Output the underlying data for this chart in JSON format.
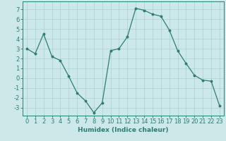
{
  "x": [
    0,
    1,
    2,
    3,
    4,
    5,
    6,
    7,
    8,
    9,
    10,
    11,
    12,
    13,
    14,
    15,
    16,
    17,
    18,
    19,
    20,
    21,
    22,
    23
  ],
  "y": [
    3.0,
    2.5,
    4.5,
    2.2,
    1.8,
    0.2,
    -1.5,
    -2.3,
    -3.5,
    -2.5,
    2.8,
    3.0,
    4.2,
    7.1,
    6.9,
    6.5,
    6.3,
    4.9,
    2.8,
    1.5,
    0.3,
    -0.2,
    -0.3,
    -2.8
  ],
  "line_color": "#2e7d6e",
  "marker": "o",
  "marker_size": 1.8,
  "bg_color": "#cce8e8",
  "grid_color": "#aad0d0",
  "xlabel": "Humidex (Indice chaleur)",
  "xlabel_fontsize": 6.5,
  "tick_fontsize": 6,
  "ylim": [
    -3.8,
    7.8
  ],
  "yticks": [
    -3,
    -2,
    -1,
    0,
    1,
    2,
    3,
    4,
    5,
    6,
    7
  ],
  "xticks": [
    0,
    1,
    2,
    3,
    4,
    5,
    6,
    7,
    8,
    9,
    10,
    11,
    12,
    13,
    14,
    15,
    16,
    17,
    18,
    19,
    20,
    21,
    22,
    23
  ]
}
